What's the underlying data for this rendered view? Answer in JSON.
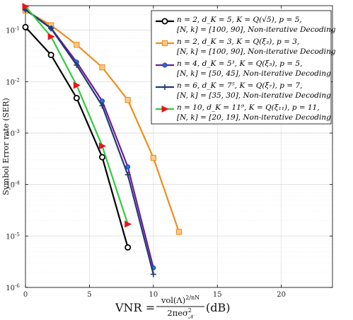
{
  "chart_data": {
    "type": "line",
    "xlabel": "VNR = vol(Λ)^{2/nN} / 2πeσ²_𝒩 (dB)",
    "xlabel_parts": {
      "lhs": "VNR = ",
      "num": "vol(Λ)",
      "num_exp": "2/nN",
      "den": "2πeσ",
      "den_sup": "2",
      "den_sub": "𝒩",
      "unit": "(dB)"
    },
    "ylabel": "Symbol Error rate (SER)",
    "xlim": [
      0,
      24
    ],
    "ylim": [
      1e-06,
      0.3
    ],
    "yscale": "log",
    "grid": true,
    "legend_position": "top-right",
    "x_ticks": [
      "0",
      "5",
      "10",
      "15",
      "20"
    ],
    "y_ticks": [
      {
        "value": 0.1,
        "mantissa": "10",
        "exp": "-1"
      },
      {
        "value": 0.01,
        "mantissa": "10",
        "exp": "-2"
      },
      {
        "value": 0.001,
        "mantissa": "10",
        "exp": "-3"
      },
      {
        "value": 0.0001,
        "mantissa": "10",
        "exp": "-4"
      },
      {
        "value": 1e-05,
        "mantissa": "10",
        "exp": "-5"
      },
      {
        "value": 1e-06,
        "mantissa": "10",
        "exp": "-6"
      }
    ],
    "series": [
      {
        "name": "n = 2, d_K = 5, K = Q(√5), p = 5, [N,k] = [100,90], Non-iterative Decoding",
        "legend_line1": "n = 2, d_K = 5, K = Q(√5), p = 5,",
        "legend_line2": "[N, k] = [100, 90], Non-iterative Decoding",
        "color": "#000000",
        "marker": "circle",
        "x": [
          0,
          2,
          4,
          6,
          8
        ],
        "y": [
          0.115,
          0.033,
          0.0048,
          0.00034,
          6e-06
        ]
      },
      {
        "name": "n = 2, d_K = 3, K = Q(ξ3), p = 3, [N,k] = [100,90], Non-iterative Decoding",
        "legend_line1": "n = 2, d_K = 3, K = Q(ξ₃), p = 3,",
        "legend_line2": "[N, k] = [100, 90], Non-iterative Decoding",
        "color": "#f28c1c",
        "marker": "square",
        "x": [
          0,
          2,
          4,
          6,
          8,
          10,
          12
        ],
        "y": [
          0.24,
          0.125,
          0.052,
          0.019,
          0.0044,
          0.00033,
          1.2e-05
        ]
      },
      {
        "name": "n = 4, d_K = 5^3, K = Q(ξ5), p = 5, [N,k] = [50,45], Non-iterative Decoding",
        "legend_line1": "n = 4, d_K = 5³, K = Q(ξ₅), p = 5,",
        "legend_line2": "[N, k] = [50, 45], Non-iterative Decoding",
        "color": "#6a1b9a",
        "marker": "dot",
        "x": [
          0,
          2,
          4,
          6,
          8,
          10
        ],
        "y": [
          0.255,
          0.11,
          0.024,
          0.0042,
          0.00022,
          2.4e-06
        ]
      },
      {
        "name": "n = 6, d_K = 7^5, K = Q(ξ7), p = 7, [N,k] = [35,30], Non-iterative Decoding",
        "legend_line1": "n = 6, d_K = 7⁵, K = Q(ξ₇), p = 7,",
        "legend_line2": "[N, k] = [35, 30], Non-iterative Decoding",
        "color": "#1f3a6e",
        "marker": "plus",
        "x": [
          0,
          2,
          4,
          6,
          8,
          10
        ],
        "y": [
          0.25,
          0.108,
          0.021,
          0.0034,
          0.000155,
          1.8e-06
        ]
      },
      {
        "name": "n = 10, d_K = 11^9, K = Q(ξ11), p = 11, [N,k] = [20,19], Non-iterative Decoding",
        "legend_line1": "n = 10, d_K = 11⁹, K = Q(ξ₁₁), p = 11,",
        "legend_line2": "[N, k] = [20, 19], Non-iterative Decoding",
        "color": "#2ecc40",
        "marker": "triangle-right",
        "marker_color": "#e8161a",
        "x": [
          0,
          2,
          4,
          6,
          8
        ],
        "y": [
          0.29,
          0.075,
          0.0085,
          0.00056,
          1.7e-05
        ]
      }
    ]
  }
}
